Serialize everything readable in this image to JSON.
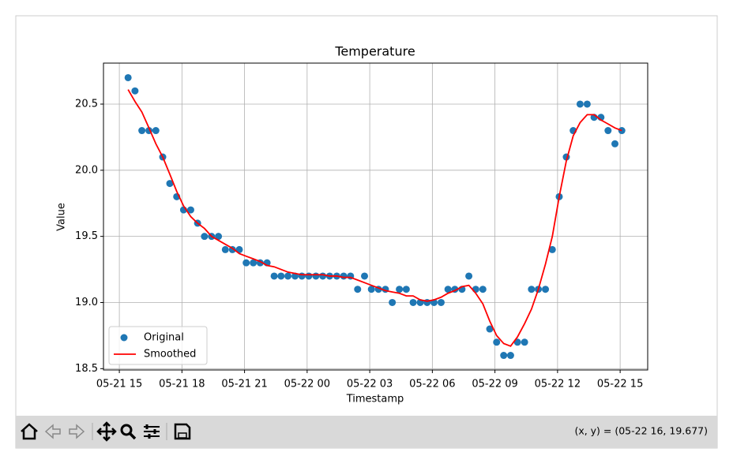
{
  "chart_data": {
    "type": "line",
    "title": "Temperature",
    "x_label": "Timestamp",
    "y_label": "Value",
    "x": [
      15.42,
      15.75,
      16.08,
      16.42,
      16.75,
      17.08,
      17.42,
      17.75,
      18.08,
      18.42,
      18.75,
      19.08,
      19.42,
      19.75,
      20.08,
      20.42,
      20.75,
      21.08,
      21.42,
      21.75,
      22.08,
      22.42,
      22.75,
      23.08,
      23.42,
      23.75,
      24.08,
      24.42,
      24.75,
      25.08,
      25.42,
      25.75,
      26.08,
      26.42,
      26.75,
      27.08,
      27.42,
      27.75,
      28.08,
      28.42,
      28.75,
      29.08,
      29.42,
      29.75,
      30.08,
      30.42,
      30.75,
      31.08,
      31.42,
      31.75,
      32.08,
      32.42,
      32.75,
      33.08,
      33.42,
      33.75,
      34.08,
      34.42,
      34.75,
      35.08,
      35.42,
      35.75,
      36.08,
      36.42,
      36.75,
      37.08,
      37.42,
      37.75,
      38.08,
      38.42,
      38.75,
      39.08
    ],
    "series": [
      {
        "name": "Original",
        "kind": "scatter",
        "color": "#1f77b4",
        "values": [
          20.7,
          20.6,
          20.3,
          20.3,
          20.3,
          20.1,
          19.9,
          19.8,
          19.7,
          19.7,
          19.6,
          19.5,
          19.5,
          19.5,
          19.4,
          19.4,
          19.4,
          19.3,
          19.3,
          19.3,
          19.3,
          19.2,
          19.2,
          19.2,
          19.2,
          19.2,
          19.2,
          19.2,
          19.2,
          19.2,
          19.2,
          19.2,
          19.2,
          19.1,
          19.2,
          19.1,
          19.1,
          19.1,
          19.0,
          19.1,
          19.1,
          19.0,
          19.0,
          19.0,
          19.0,
          19.0,
          19.1,
          19.1,
          19.1,
          19.2,
          19.1,
          19.1,
          18.8,
          18.7,
          18.6,
          18.6,
          18.7,
          18.7,
          19.1,
          19.1,
          19.1,
          19.4,
          19.8,
          20.1,
          20.3,
          20.5,
          20.5,
          20.4,
          20.4,
          20.3,
          20.2,
          20.3
        ]
      },
      {
        "name": "Smoothed",
        "kind": "line",
        "color": "#ff0000",
        "values": [
          20.61,
          20.52,
          20.44,
          20.32,
          20.2,
          20.1,
          19.97,
          19.84,
          19.73,
          19.65,
          19.6,
          19.56,
          19.5,
          19.47,
          19.44,
          19.41,
          19.37,
          19.35,
          19.33,
          19.31,
          19.28,
          19.27,
          19.25,
          19.23,
          19.22,
          19.21,
          19.21,
          19.21,
          19.21,
          19.2,
          19.2,
          19.19,
          19.19,
          19.17,
          19.15,
          19.13,
          19.11,
          19.09,
          19.08,
          19.07,
          19.05,
          19.05,
          19.02,
          19.01,
          19.02,
          19.04,
          19.07,
          19.09,
          19.12,
          19.13,
          19.07,
          18.99,
          18.86,
          18.75,
          18.69,
          18.67,
          18.74,
          18.84,
          18.95,
          19.1,
          19.29,
          19.5,
          19.8,
          20.07,
          20.26,
          20.36,
          20.42,
          20.42,
          20.38,
          20.35,
          20.32,
          20.3
        ]
      }
    ],
    "xlim": [
      14.24,
      40.32
    ],
    "xticks": [
      {
        "value": 15,
        "label": "05-21 15"
      },
      {
        "value": 18,
        "label": "05-21 18"
      },
      {
        "value": 21,
        "label": "05-21 21"
      },
      {
        "value": 24,
        "label": "05-22 00"
      },
      {
        "value": 27,
        "label": "05-22 03"
      },
      {
        "value": 30,
        "label": "05-22 06"
      },
      {
        "value": 33,
        "label": "05-22 09"
      },
      {
        "value": 36,
        "label": "05-22 12"
      },
      {
        "value": 39,
        "label": "05-22 15"
      }
    ],
    "ylim": [
      18.49,
      20.81
    ],
    "yticks": [
      18.5,
      {
        "value": 19,
        "label": "19.0"
      },
      19.5,
      {
        "value": 20,
        "label": "20.0"
      },
      20.5
    ],
    "grid": true,
    "legend": "lower left"
  },
  "toolbar": {
    "status": "(x, y) = (05-22 16, 19.677)"
  }
}
